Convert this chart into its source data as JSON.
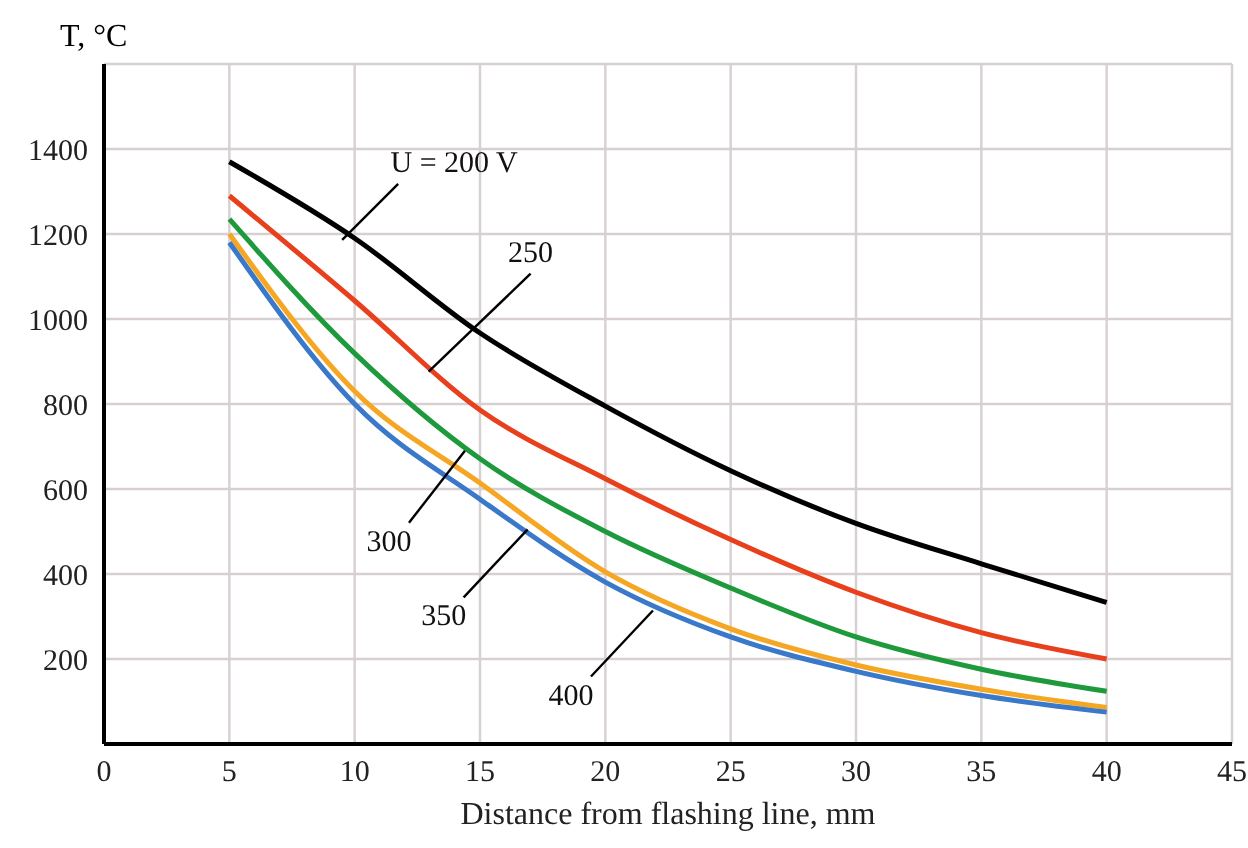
{
  "chart_data": {
    "type": "line",
    "ylabel": "T, °C",
    "xlabel": "Distance from flashing line, mm",
    "x": [
      5,
      10,
      15,
      20,
      25,
      30,
      35,
      40
    ],
    "series": [
      {
        "color": "#000000",
        "values": [
          1370,
          1190,
          967,
          795,
          643,
          519,
          424,
          333
        ]
      },
      {
        "color": "#e8401c",
        "values": [
          1290,
          1043,
          786,
          624,
          481,
          357,
          262,
          200
        ]
      },
      {
        "color": "#1e9a3c",
        "values": [
          1235,
          919,
          671,
          500,
          367,
          252,
          176,
          124
        ]
      },
      {
        "color": "#f5a623",
        "values": [
          1200,
          830,
          614,
          405,
          271,
          186,
          129,
          86
        ]
      },
      {
        "color": "#3a78c9",
        "values": [
          1180,
          800,
          576,
          381,
          252,
          171,
          114,
          75
        ]
      }
    ],
    "xlim": [
      0,
      45
    ],
    "xticks": [
      0,
      5,
      10,
      15,
      20,
      25,
      30,
      35,
      40,
      45
    ],
    "ylim": [
      0,
      1600
    ],
    "yticks": [
      200,
      400,
      600,
      800,
      1000,
      1200,
      1400
    ],
    "grid": true,
    "marker": "none",
    "line_style": "solid",
    "annotations": [
      {
        "text": "U = 200 V",
        "x": 9.5,
        "y": 1186
      },
      {
        "text": "250",
        "x": 12.95,
        "y": 876
      },
      {
        "text": "300",
        "x": 14.4,
        "y": 690
      },
      {
        "text": "350",
        "x": 16.9,
        "y": 505
      },
      {
        "text": "400",
        "x": 21.9,
        "y": 314
      }
    ]
  }
}
